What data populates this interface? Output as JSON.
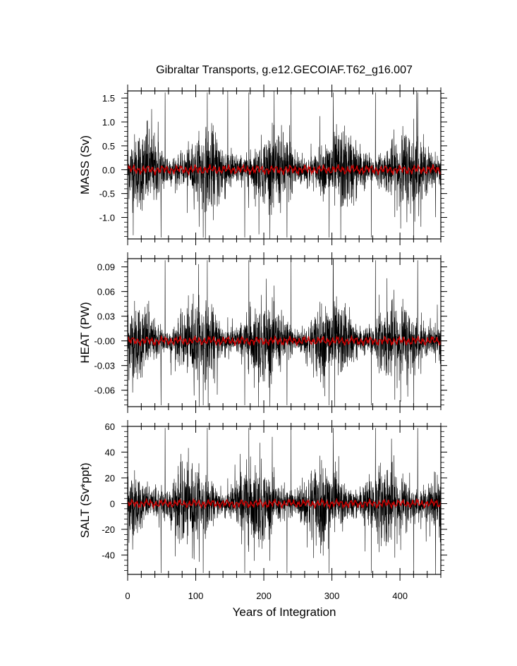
{
  "chart_data": {
    "type": "line",
    "title": "Gibraltar Transports, g.e12.GECOIAF.T62_g16.007",
    "xlabel": "Years of Integration",
    "xlim": [
      0,
      460
    ],
    "xticks": [
      "0",
      "100",
      "200",
      "300",
      "400"
    ],
    "colors": {
      "raw": "#000000",
      "smoothed": "#cc0000"
    },
    "panels": [
      {
        "ylabel": "MASS (Sv)",
        "ylim": [
          -1.45,
          1.65
        ],
        "yticks": [
          "1.5",
          "1.0",
          "0.5",
          "0.0",
          "-0.5",
          "-1.0"
        ],
        "ytick_values": [
          1.5,
          1.0,
          0.5,
          0.0,
          -0.5,
          -1.0
        ],
        "raw_envelope": [
          -1.45,
          1.65
        ],
        "typical_amplitude": 0.35,
        "smoothed_amplitude": 0.09
      },
      {
        "ylabel": "HEAT (PW)",
        "ylim": [
          -0.08,
          0.1
        ],
        "yticks": [
          "0.09",
          "0.06",
          "0.03",
          "-0.00",
          "-0.03",
          "-0.06"
        ],
        "ytick_values": [
          0.09,
          0.06,
          0.03,
          0.0,
          -0.03,
          -0.06
        ],
        "raw_envelope": [
          -0.08,
          0.1
        ],
        "typical_amplitude": 0.02,
        "smoothed_amplitude": 0.005
      },
      {
        "ylabel": "SALT (Sv*ppt)",
        "ylim": [
          -55,
          60
        ],
        "yticks": [
          "60",
          "40",
          "20",
          "0",
          "-20",
          "-40"
        ],
        "ytick_values": [
          60,
          40,
          20,
          0,
          -20,
          -40
        ],
        "raw_envelope": [
          -55,
          60
        ],
        "typical_amplitude": 13,
        "smoothed_amplitude": 3
      }
    ]
  }
}
